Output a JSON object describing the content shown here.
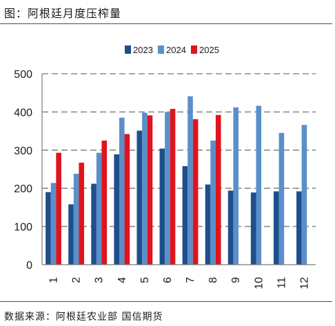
{
  "figure": {
    "title": "图：阿根廷月度压榨量",
    "source": "数据来源：阿根廷农业部  国信期货"
  },
  "chart_data": {
    "type": "bar",
    "title": "",
    "xlabel": "",
    "ylabel": "",
    "categories": [
      "1",
      "2",
      "3",
      "4",
      "5",
      "6",
      "7",
      "8",
      "9",
      "10",
      "11",
      "12"
    ],
    "ylim": [
      0,
      500
    ],
    "yticks": [
      "0",
      "100",
      "200",
      "300",
      "400",
      "500"
    ],
    "grid": "horizontal-dashed",
    "legend_position": "top-center",
    "series": [
      {
        "name": "2023",
        "color": "#1f4e8c",
        "values": [
          190,
          158,
          212,
          289,
          351,
          304,
          258,
          210,
          194,
          189,
          192,
          192
        ]
      },
      {
        "name": "2024",
        "color": "#5b8fc9",
        "values": [
          214,
          238,
          293,
          385,
          398,
          400,
          441,
          325,
          412,
          416,
          345,
          366
        ]
      },
      {
        "name": "2025",
        "color": "#e0141e",
        "values": [
          293,
          267,
          325,
          342,
          391,
          408,
          381,
          392,
          null,
          null,
          null,
          null
        ]
      }
    ]
  }
}
